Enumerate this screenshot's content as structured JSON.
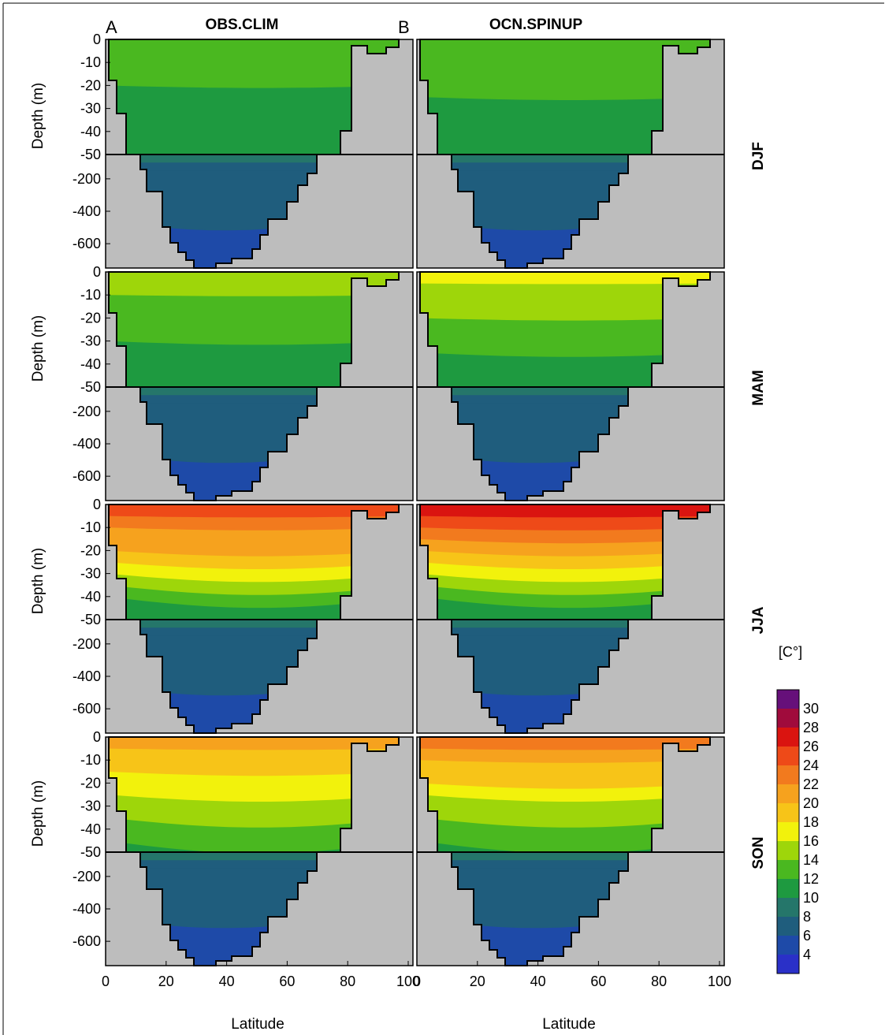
{
  "figure": {
    "columns": [
      {
        "letter": "A",
        "title": "OBS.CLIM"
      },
      {
        "letter": "B",
        "title": "OCN.SPINUP"
      }
    ],
    "seasons": [
      "DJF",
      "MAM",
      "JJA",
      "SON"
    ],
    "y_axis_title": "Depth (m)",
    "x_axis_title": "Latitude",
    "unit_label": "[C°]"
  },
  "chart_data": {
    "type": "heatmap",
    "x_ticks": [
      0,
      20,
      40,
      60,
      80,
      100
    ],
    "x_tick_labels": [
      "0",
      "20",
      "40",
      "60",
      "80",
      "100"
    ],
    "y_ticks_upper": [
      0,
      -10,
      -20,
      -30,
      -40,
      -50
    ],
    "y_ticks_lower": [
      -200,
      -400,
      -600
    ],
    "y_tick_labels": [
      "0",
      "-10",
      "-20",
      "-30",
      "-40",
      "-50",
      "-200",
      "-400",
      "-600"
    ],
    "colorbar": {
      "levels": [
        4,
        6,
        8,
        10,
        12,
        14,
        16,
        18,
        20,
        22,
        24,
        26,
        28,
        30
      ],
      "colors": [
        "#2a30c8",
        "#1e4aa8",
        "#1f5d7d",
        "#25766a",
        "#1e9a40",
        "#4ab820",
        "#9ed60a",
        "#f2f20c",
        "#f7c418",
        "#f6a21e",
        "#f27a1e",
        "#ee4a18",
        "#da1410",
        "#a00b3c",
        "#66107a"
      ]
    },
    "ocean_colors": {
      "land": "#bdbdbd"
    },
    "panels": [
      {
        "col": "OBS.CLIM",
        "season": "DJF",
        "surface_temp_range": [
          10,
          13
        ],
        "deep_temp_range": [
          4,
          8
        ]
      },
      {
        "col": "OCN.SPINUP",
        "season": "DJF",
        "surface_temp_range": [
          11,
          13
        ],
        "deep_temp_range": [
          4,
          8
        ]
      },
      {
        "col": "OBS.CLIM",
        "season": "MAM",
        "surface_temp_range": [
          10,
          15
        ],
        "deep_temp_range": [
          4,
          8
        ]
      },
      {
        "col": "OCN.SPINUP",
        "season": "MAM",
        "surface_temp_range": [
          10,
          16
        ],
        "deep_temp_range": [
          4,
          8
        ]
      },
      {
        "col": "OBS.CLIM",
        "season": "JJA",
        "surface_temp_range": [
          10,
          25
        ],
        "deep_temp_range": [
          4,
          8
        ]
      },
      {
        "col": "OCN.SPINUP",
        "season": "JJA",
        "surface_temp_range": [
          10,
          27
        ],
        "deep_temp_range": [
          4,
          8
        ]
      },
      {
        "col": "OBS.CLIM",
        "season": "SON",
        "surface_temp_range": [
          11,
          21
        ],
        "deep_temp_range": [
          4,
          8
        ]
      },
      {
        "col": "OCN.SPINUP",
        "season": "SON",
        "surface_temp_range": [
          11,
          22
        ],
        "deep_temp_range": [
          4,
          8
        ]
      }
    ]
  }
}
